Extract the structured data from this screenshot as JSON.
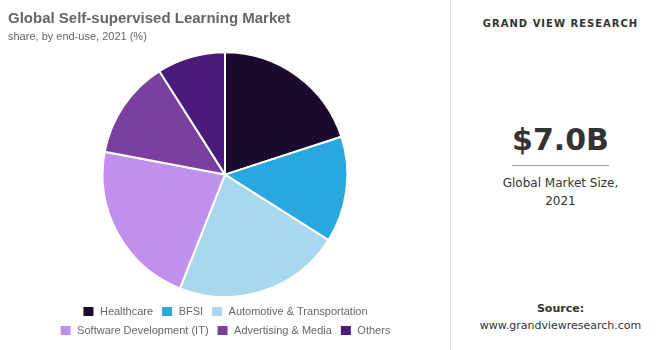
{
  "chart_data": {
    "type": "pie",
    "title": "Global Self-supervised Learning Market",
    "subtitle": "share, by end-use, 2021 (%)",
    "categories": [
      "Healthcare",
      "BFSI",
      "Automotive & Transportation",
      "Software Development (IT)",
      "Advertising & Media",
      "Others"
    ],
    "values": [
      20,
      14,
      22,
      22,
      13,
      9
    ],
    "colors": [
      "#1a0a2e",
      "#29a8e0",
      "#a8d8f0",
      "#c090ee",
      "#7b3fa0",
      "#4b1a7a"
    ],
    "legend": "bottom",
    "annotations": [
      "GRAND VIEW RESEARCH",
      "$7.0B",
      "Global Market Size,\n2021",
      "Source:",
      "www.grandviewresearch.com"
    ]
  }
}
